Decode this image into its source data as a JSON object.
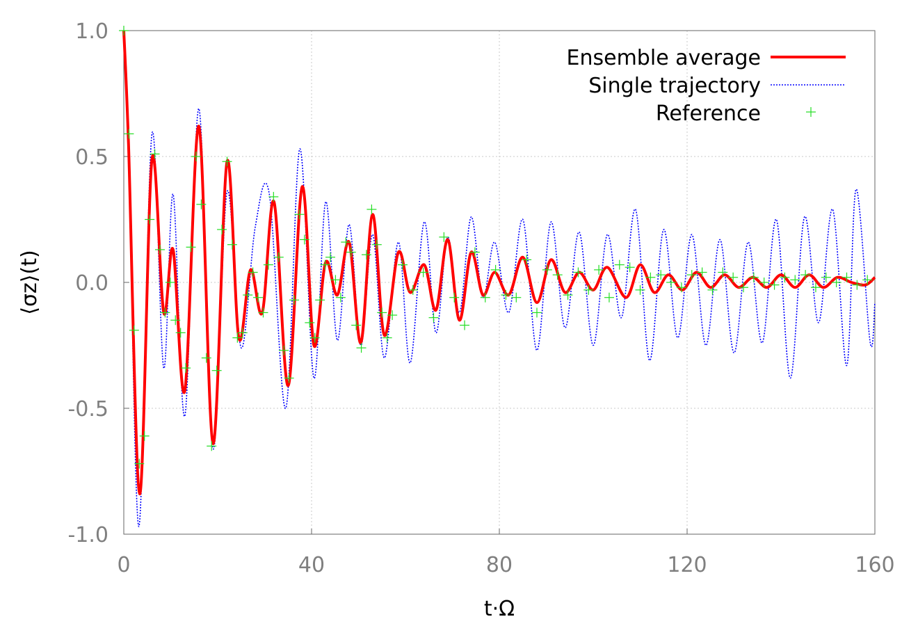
{
  "chart_data": {
    "type": "line",
    "xlabel": "t·Ω",
    "ylabel": "⟨σz⟩(t)",
    "xlim": [
      0,
      160
    ],
    "ylim": [
      -1.0,
      1.0
    ],
    "xticks": [
      0,
      40,
      80,
      120,
      160
    ],
    "xtick_labels": [
      "0",
      "40",
      "80",
      "120",
      "160"
    ],
    "yticks": [
      -1.0,
      -0.5,
      0.0,
      0.5,
      1.0
    ],
    "ytick_labels": [
      "-1.0",
      "-0.5",
      "0.0",
      "0.5",
      "1.0"
    ],
    "grid": true,
    "legend_position": "top-right",
    "series": [
      {
        "name": "Ensemble average",
        "style": "solid",
        "color": "#ff0000",
        "x": [
          0,
          1,
          3.4,
          6,
          8.5,
          10.5,
          13,
          16,
          19,
          22,
          24.5,
          27,
          29.5,
          32,
          35,
          38,
          40.5,
          43,
          45.5,
          48,
          50.5,
          53,
          55.5,
          58.5,
          61,
          64,
          66.5,
          69,
          71.5,
          74,
          76.5,
          79,
          82,
          85,
          88,
          91,
          94,
          97,
          100,
          103,
          107,
          110,
          113,
          116,
          119,
          122,
          125,
          128,
          131,
          134,
          137,
          140,
          143,
          146,
          149,
          152,
          155,
          158,
          160
        ],
        "y": [
          1.0,
          0.55,
          -0.84,
          0.49,
          -0.12,
          0.13,
          -0.43,
          0.62,
          -0.64,
          0.48,
          -0.22,
          0.05,
          -0.12,
          0.32,
          -0.41,
          0.38,
          -0.25,
          0.08,
          -0.05,
          0.16,
          -0.24,
          0.27,
          -0.21,
          0.12,
          -0.04,
          0.07,
          -0.11,
          0.17,
          -0.15,
          0.12,
          -0.05,
          0.04,
          -0.05,
          0.1,
          -0.08,
          0.09,
          -0.04,
          0.04,
          -0.03,
          0.06,
          -0.06,
          0.07,
          -0.04,
          0.03,
          -0.03,
          0.04,
          -0.02,
          0.03,
          -0.02,
          0.02,
          -0.02,
          0.03,
          -0.02,
          0.03,
          -0.02,
          0.02,
          0.0,
          -0.01,
          0.02
        ]
      },
      {
        "name": "Single trajectory",
        "style": "dotted",
        "color": "#0000ff",
        "x": [
          0,
          1,
          3.2,
          6,
          8.5,
          10.5,
          13,
          16,
          19,
          22,
          25,
          28,
          31,
          34.5,
          37.5,
          40.5,
          43,
          45.5,
          48,
          50.5,
          53,
          55.5,
          58.5,
          61,
          64,
          66.5,
          69,
          71.5,
          74,
          76.5,
          79,
          82,
          85,
          88,
          91,
          94,
          97,
          100,
          103,
          106,
          109,
          112,
          115,
          118,
          121,
          124,
          127,
          130,
          133,
          136,
          139,
          142,
          145,
          148,
          151,
          154,
          156,
          159,
          160
        ],
        "y": [
          1.0,
          0.6,
          -0.97,
          0.59,
          -0.34,
          0.35,
          -0.53,
          0.69,
          -0.66,
          0.36,
          -0.26,
          0.22,
          0.35,
          -0.5,
          0.53,
          -0.38,
          0.32,
          -0.23,
          0.23,
          -0.25,
          0.19,
          -0.3,
          0.16,
          -0.32,
          0.24,
          -0.2,
          0.18,
          -0.12,
          0.26,
          -0.06,
          0.16,
          -0.12,
          0.25,
          -0.27,
          0.24,
          -0.18,
          0.2,
          -0.25,
          0.19,
          -0.14,
          0.29,
          -0.31,
          0.21,
          -0.22,
          0.19,
          -0.25,
          0.17,
          -0.28,
          0.16,
          -0.24,
          0.25,
          -0.38,
          0.26,
          -0.16,
          0.29,
          -0.33,
          0.37,
          -0.24,
          -0.08
        ]
      },
      {
        "name": "Reference",
        "style": "markers",
        "color": "#22dd22",
        "x": [
          0,
          1.1,
          2.2,
          3.3,
          4.4,
          5.5,
          6.6,
          7.7,
          8.8,
          9.9,
          11,
          12.1,
          13.2,
          14.3,
          15.4,
          16.5,
          17.6,
          18.7,
          19.8,
          20.9,
          22,
          23.1,
          24.2,
          25.3,
          26.4,
          27.5,
          28.6,
          29.7,
          30.8,
          31.9,
          33,
          34.1,
          35.2,
          36.3,
          37.4,
          38.5,
          39.6,
          40.7,
          41.8,
          42.9,
          44,
          45.1,
          46.2,
          47.3,
          48.4,
          49.5,
          50.6,
          51.7,
          52.8,
          53.9,
          55,
          56.1,
          57.2,
          59.4,
          61.6,
          63.8,
          66,
          68.2,
          70.4,
          72.6,
          74.8,
          77,
          79.2,
          81.4,
          83.6,
          85.8,
          88,
          90.2,
          92.4,
          94.6,
          96.8,
          99,
          101.2,
          103.4,
          105.6,
          107.8,
          110,
          112.2,
          114.4,
          116.6,
          118.8,
          121,
          123.2,
          125.4,
          127.6,
          129.8,
          132,
          134.2,
          136.4,
          138.6,
          140.8,
          143,
          145.2,
          147.4,
          149.6,
          151.8,
          154,
          156.2,
          158.4
        ],
        "y": [
          1.0,
          0.59,
          -0.19,
          -0.72,
          -0.61,
          0.25,
          0.51,
          0.13,
          -0.12,
          0.0,
          -0.15,
          -0.2,
          -0.34,
          0.14,
          0.5,
          0.31,
          -0.3,
          -0.65,
          -0.35,
          0.21,
          0.48,
          0.15,
          -0.22,
          -0.2,
          -0.05,
          0.04,
          -0.06,
          -0.12,
          0.07,
          0.34,
          0.1,
          -0.27,
          -0.38,
          -0.07,
          0.27,
          0.17,
          -0.16,
          -0.22,
          -0.07,
          0.07,
          0.1,
          0.01,
          -0.06,
          0.16,
          0.12,
          -0.17,
          -0.26,
          0.11,
          0.29,
          0.15,
          -0.12,
          -0.22,
          -0.13,
          0.07,
          -0.03,
          0.04,
          -0.14,
          0.18,
          -0.06,
          -0.17,
          0.12,
          -0.06,
          0.05,
          -0.05,
          -0.06,
          0.09,
          -0.12,
          0.05,
          0.03,
          -0.05,
          0.04,
          -0.03,
          0.05,
          -0.06,
          0.07,
          0.06,
          -0.03,
          0.02,
          0.03,
          0.0,
          -0.02,
          0.03,
          0.04,
          -0.03,
          0.04,
          0.02,
          -0.02,
          0.02,
          0.0,
          -0.01,
          0.02,
          0.01,
          0.03,
          -0.02,
          0.02,
          0.0,
          0.02,
          -0.01,
          0.01
        ]
      }
    ]
  }
}
